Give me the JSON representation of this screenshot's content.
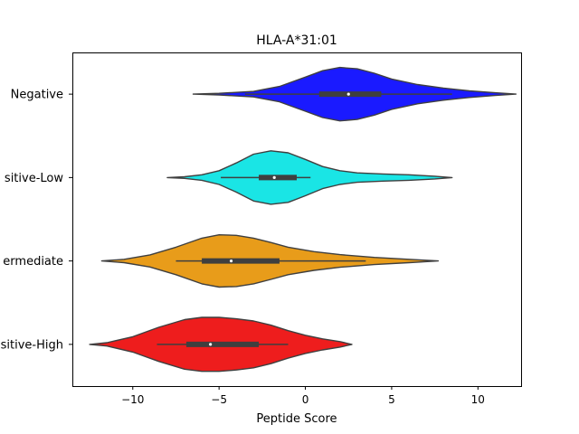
{
  "chart_data": {
    "type": "violin",
    "title": "HLA-A*31:01",
    "xlabel": "Peptide Score",
    "ylabel": "",
    "xlim": [
      -13.5,
      12.5
    ],
    "xticks": [
      -10,
      -5,
      0,
      5,
      10
    ],
    "xtick_labels": [
      "−10",
      "−5",
      "0",
      "5",
      "10"
    ],
    "categories": [
      "Negative",
      "Positive-Low",
      "Positive-Intermediate",
      "Positive-High"
    ],
    "category_labels_visible": [
      "Negative",
      "sitive-Low",
      "ermediate",
      "sitive-High"
    ],
    "grid": false,
    "series": [
      {
        "name": "Negative",
        "color": "#1a1aff",
        "density": [
          [
            -6.5,
            0.0
          ],
          [
            -5.0,
            0.03
          ],
          [
            -3.0,
            0.1
          ],
          [
            -1.5,
            0.28
          ],
          [
            0.0,
            0.62
          ],
          [
            1.0,
            0.85
          ],
          [
            2.0,
            0.97
          ],
          [
            3.0,
            0.92
          ],
          [
            4.0,
            0.76
          ],
          [
            5.0,
            0.55
          ],
          [
            6.5,
            0.35
          ],
          [
            8.0,
            0.22
          ],
          [
            9.5,
            0.12
          ],
          [
            11.0,
            0.05
          ],
          [
            12.2,
            0.0
          ]
        ],
        "whisker": [
          -3.5,
          8.5
        ],
        "q1": 0.8,
        "q3": 4.4,
        "median": 2.5
      },
      {
        "name": "Positive-Low",
        "color": "#1ae5e5",
        "density": [
          [
            -8.0,
            0.0
          ],
          [
            -7.0,
            0.03
          ],
          [
            -6.0,
            0.1
          ],
          [
            -5.0,
            0.25
          ],
          [
            -4.0,
            0.53
          ],
          [
            -3.0,
            0.85
          ],
          [
            -2.0,
            0.97
          ],
          [
            -1.0,
            0.9
          ],
          [
            0.0,
            0.66
          ],
          [
            1.0,
            0.4
          ],
          [
            2.0,
            0.25
          ],
          [
            3.0,
            0.17
          ],
          [
            4.5,
            0.13
          ],
          [
            6.0,
            0.1
          ],
          [
            7.5,
            0.05
          ],
          [
            8.5,
            0.0
          ]
        ],
        "whisker": [
          -4.9,
          0.3
        ],
        "q1": -2.7,
        "q3": -0.5,
        "median": -1.8
      },
      {
        "name": "Positive-Intermediate",
        "color": "#e89c1a",
        "density": [
          [
            -11.8,
            0.0
          ],
          [
            -10.5,
            0.06
          ],
          [
            -9.0,
            0.22
          ],
          [
            -7.5,
            0.5
          ],
          [
            -6.0,
            0.83
          ],
          [
            -5.0,
            0.95
          ],
          [
            -4.0,
            0.93
          ],
          [
            -3.0,
            0.83
          ],
          [
            -2.0,
            0.67
          ],
          [
            -1.0,
            0.5
          ],
          [
            0.5,
            0.34
          ],
          [
            2.0,
            0.23
          ],
          [
            4.0,
            0.13
          ],
          [
            6.0,
            0.06
          ],
          [
            7.7,
            0.0
          ]
        ],
        "whisker": [
          -7.5,
          3.5
        ],
        "q1": -6.0,
        "q3": -1.5,
        "median": -4.3
      },
      {
        "name": "Positive-High",
        "color": "#ee1d1d",
        "density": [
          [
            -12.5,
            0.0
          ],
          [
            -11.5,
            0.06
          ],
          [
            -10.0,
            0.28
          ],
          [
            -8.5,
            0.62
          ],
          [
            -7.0,
            0.9
          ],
          [
            -6.0,
            0.98
          ],
          [
            -5.0,
            0.98
          ],
          [
            -4.0,
            0.93
          ],
          [
            -3.0,
            0.85
          ],
          [
            -2.0,
            0.7
          ],
          [
            -1.0,
            0.5
          ],
          [
            0.0,
            0.33
          ],
          [
            1.0,
            0.2
          ],
          [
            2.0,
            0.1
          ],
          [
            2.7,
            0.0
          ]
        ],
        "whisker": [
          -8.6,
          -1.0
        ],
        "q1": -6.9,
        "q3": -2.7,
        "median": -5.5
      }
    ]
  }
}
